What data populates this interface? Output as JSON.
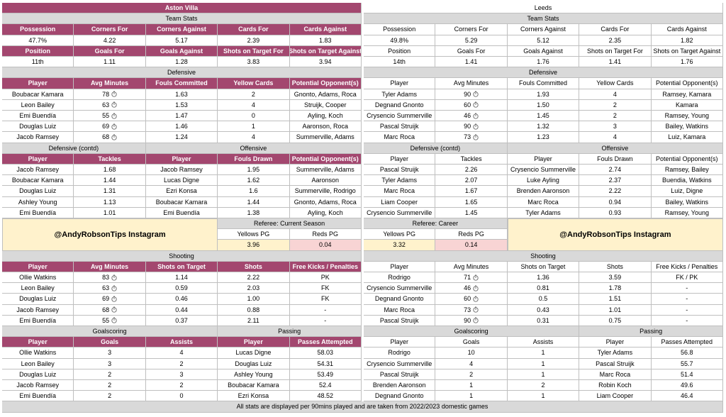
{
  "teams": [
    {
      "name": "Aston Villa",
      "team_stats": {
        "title": "Team Stats",
        "rows": [
          [
            "Possession",
            "Corners For",
            "Corners Against",
            "Cards For",
            "Cards Against"
          ],
          [
            "47.7%",
            "4.22",
            "5.17",
            "2.39",
            "1.83"
          ],
          [
            "Position",
            "Goals For",
            "Goals Against",
            "Shots on Target For",
            "Shots on Target Against"
          ],
          [
            "11th",
            "1.11",
            "1.28",
            "3.83",
            "3.94"
          ]
        ]
      },
      "defensive": {
        "title": "Defensive",
        "header": [
          "Player",
          "Avg Minutes",
          "Fouls Committed",
          "Yellow Cards",
          "Potential Opponent(s)"
        ],
        "rows": [
          [
            "Boubacar Kamara",
            "78",
            "1.63",
            "2",
            "Gnonto, Adams, Roca"
          ],
          [
            "Leon Bailey",
            "63",
            "1.53",
            "4",
            "Struijk, Cooper"
          ],
          [
            "Emi Buendía",
            "55",
            "1.47",
            "0",
            "Ayling, Koch"
          ],
          [
            "Douglas Luiz",
            "69",
            "1.46",
            "1",
            "Aaronson, Roca"
          ],
          [
            "Jacob Ramsey",
            "68",
            "1.24",
            "4",
            "Summerville, Adams"
          ]
        ]
      },
      "defensive_contd": {
        "title": "Defensive (contd)",
        "header": [
          "Player",
          "Tackles"
        ],
        "rows": [
          [
            "Jacob Ramsey",
            "1.68"
          ],
          [
            "Boubacar Kamara",
            "1.44"
          ],
          [
            "Douglas Luiz",
            "1.31"
          ],
          [
            "Ashley Young",
            "1.13"
          ],
          [
            "Emi Buendía",
            "1.01"
          ]
        ]
      },
      "offensive": {
        "title": "Offensive",
        "header": [
          "Player",
          "Fouls Drawn",
          "Potential Opponent(s)"
        ],
        "rows": [
          [
            "Jacob Ramsey",
            "1.95",
            "Summerville, Adams"
          ],
          [
            "Lucas Digne",
            "1.62",
            "Aaronson"
          ],
          [
            "Ezri Konsa",
            "1.6",
            "Summerville, Rodrigo"
          ],
          [
            "Boubacar Kamara",
            "1.44",
            "Gnonto, Adams, Roca"
          ],
          [
            "Emi Buendía",
            "1.38",
            "Ayling, Koch"
          ]
        ]
      },
      "shooting": {
        "title": "Shooting",
        "header": [
          "Player",
          "Avg Minutes",
          "Shots on Target",
          "Shots",
          "Free Kicks / Penalties"
        ],
        "rows": [
          [
            "Ollie Watkins",
            "83",
            "1.14",
            "2.22",
            "PK"
          ],
          [
            "Leon Bailey",
            "63",
            "0.59",
            "2.03",
            "FK"
          ],
          [
            "Douglas Luiz",
            "69",
            "0.46",
            "1.00",
            "FK"
          ],
          [
            "Jacob Ramsey",
            "68",
            "0.44",
            "0.88",
            "-"
          ],
          [
            "Emi Buendía",
            "55",
            "0.37",
            "2.11",
            "-"
          ]
        ]
      },
      "goalscoring": {
        "title": "Goalscoring",
        "header": [
          "Player",
          "Goals",
          "Assists"
        ],
        "rows": [
          [
            "Ollie Watkins",
            "3",
            "4"
          ],
          [
            "Leon Bailey",
            "3",
            "2"
          ],
          [
            "Douglas Luiz",
            "2",
            "3"
          ],
          [
            "Jacob Ramsey",
            "2",
            "2"
          ],
          [
            "Emi Buendía",
            "2",
            "0"
          ]
        ]
      },
      "passing": {
        "title": "Passing",
        "header": [
          "Player",
          "Passes Attempted"
        ],
        "rows": [
          [
            "Lucas Digne",
            "58.03"
          ],
          [
            "Douglas Luiz",
            "54.31"
          ],
          [
            "Ashley Young",
            "53.49"
          ],
          [
            "Boubacar Kamara",
            "52.4"
          ],
          [
            "Ezri Konsa",
            "48.52"
          ]
        ]
      }
    },
    {
      "name": "Leeds",
      "team_stats": {
        "title": "Team Stats",
        "rows": [
          [
            "Possession",
            "Corners For",
            "Corners Against",
            "Cards For",
            "Cards Against"
          ],
          [
            "49.8%",
            "5.29",
            "5.12",
            "2.35",
            "1.82"
          ],
          [
            "Position",
            "Goals For",
            "Goals Against",
            "Shots on Target For",
            "Shots on Target Against"
          ],
          [
            "14th",
            "1.41",
            "1.76",
            "1.41",
            "1.76"
          ]
        ]
      },
      "defensive": {
        "title": "Defensive",
        "header": [
          "Player",
          "Avg Minutes",
          "Fouls Committed",
          "Yellow Cards",
          "Potential Opponent(s)"
        ],
        "rows": [
          [
            "Tyler Adams",
            "90",
            "1.93",
            "4",
            "Ramsey, Kamara"
          ],
          [
            "Degnand Gnonto",
            "60",
            "1.50",
            "2",
            "Kamara"
          ],
          [
            "Crysencio Summerville",
            "46",
            "1.45",
            "2",
            "Ramsey, Young"
          ],
          [
            "Pascal Struijk",
            "90",
            "1.32",
            "3",
            "Bailey, Watkins"
          ],
          [
            "Marc Roca",
            "73",
            "1.23",
            "4",
            "Luiz, Kamara"
          ]
        ]
      },
      "defensive_contd": {
        "title": "Defensive (contd)",
        "header": [
          "Player",
          "Tackles"
        ],
        "rows": [
          [
            "Pascal Struijk",
            "2.26"
          ],
          [
            "Tyler Adams",
            "2.07"
          ],
          [
            "Marc Roca",
            "1.67"
          ],
          [
            "Liam Cooper",
            "1.65"
          ],
          [
            "Crysencio Summerville",
            "1.45"
          ]
        ]
      },
      "offensive": {
        "title": "Offensive",
        "header": [
          "Player",
          "Fouls Drawn",
          "Potential Opponent(s)"
        ],
        "rows": [
          [
            "Crysencio Summerville",
            "2.74",
            "Ramsey, Bailey"
          ],
          [
            "Luke Ayling",
            "2.37",
            "Buendia, Watkins"
          ],
          [
            "Brenden Aaronson",
            "2.22",
            "Luiz, Digne"
          ],
          [
            "Marc Roca",
            "0.94",
            "Bailey, Watkins"
          ],
          [
            "Tyler Adams",
            "0.93",
            "Ramsey, Young"
          ]
        ]
      },
      "shooting": {
        "title": "Shooting",
        "header": [
          "Player",
          "Avg Minutes",
          "Shots on Target",
          "Shots",
          "Free Kicks / Penalties"
        ],
        "rows": [
          [
            "Rodrigo",
            "71",
            "1.36",
            "3.59",
            "FK / PK"
          ],
          [
            "Crysencio Summerville",
            "46",
            "0.81",
            "1.78",
            "-"
          ],
          [
            "Degnand Gnonto",
            "60",
            "0.5",
            "1.51",
            "-"
          ],
          [
            "Marc Roca",
            "73",
            "0.43",
            "1.01",
            "-"
          ],
          [
            "Pascal Struijk",
            "90",
            "0.31",
            "0.75",
            "-"
          ]
        ]
      },
      "goalscoring": {
        "title": "Goalscoring",
        "header": [
          "Player",
          "Goals",
          "Assists"
        ],
        "rows": [
          [
            "Rodrigo",
            "10",
            "1"
          ],
          [
            "Crysencio Summerville",
            "4",
            "1"
          ],
          [
            "Pascal Struijk",
            "2",
            "1"
          ],
          [
            "Brenden Aaronson",
            "1",
            "2"
          ],
          [
            "Degnand Gnonto",
            "1",
            "1"
          ]
        ]
      },
      "passing": {
        "title": "Passing",
        "header": [
          "Player",
          "Passes Attempted"
        ],
        "rows": [
          [
            "Tyler Adams",
            "56.8"
          ],
          [
            "Pascal Struijk",
            "55.7"
          ],
          [
            "Marc Roca",
            "51.4"
          ],
          [
            "Robin Koch",
            "49.6"
          ],
          [
            "Liam Cooper",
            "46.4"
          ]
        ]
      }
    }
  ],
  "promo": "@AndyRobsonTips Instagram",
  "referee": [
    {
      "title": "Referee: Current Season",
      "header": [
        "Yellows PG",
        "Reds PG"
      ],
      "values": [
        "3.96",
        "0.04"
      ]
    },
    {
      "title": "Referee: Career",
      "header": [
        "Yellows PG",
        "Reds PG"
      ],
      "values": [
        "3.32",
        "0.14"
      ]
    }
  ],
  "footer": "All stats are displayed per 90mins played and are taken from 2022/2023 domestic games"
}
